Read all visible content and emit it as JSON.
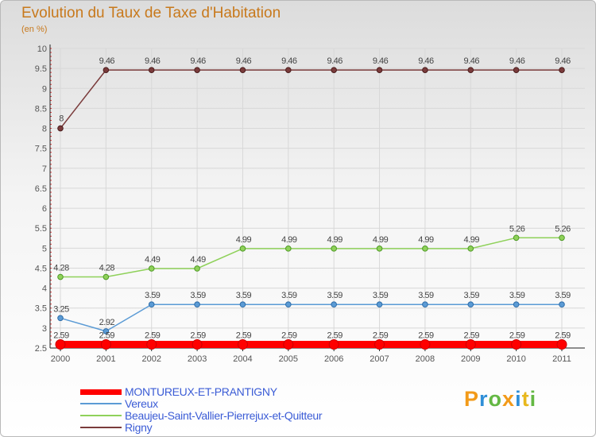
{
  "title": "Evolution du Taux de Taxe d'Habitation",
  "subtitle": "(en %)",
  "logo": {
    "text": "Proxiti"
  },
  "chart_data": {
    "type": "line",
    "x": [
      "2000",
      "2001",
      "2002",
      "2003",
      "2004",
      "2005",
      "2006",
      "2007",
      "2008",
      "2009",
      "2010",
      "2011"
    ],
    "ylim": [
      2.5,
      10
    ],
    "y_ticks": [
      "2.5",
      "3",
      "3.5",
      "4",
      "4.5",
      "5",
      "5.5",
      "6",
      "6.5",
      "7",
      "7.5",
      "8",
      "8.5",
      "9",
      "9.5",
      "10"
    ],
    "legend_position": "bottom-left",
    "series": [
      {
        "name": "MONTUREUX-ET-PRANTIGNY",
        "color": "#ff0000",
        "values": [
          2.59,
          2.59,
          2.59,
          2.59,
          2.59,
          2.59,
          2.59,
          2.59,
          2.59,
          2.59,
          2.59,
          2.59
        ],
        "labels": [
          "2.59",
          "2.59",
          "2.59",
          "2.59",
          "2.59",
          "2.59",
          "2.59",
          "2.59",
          "2.59",
          "2.59",
          "2.59",
          "2.59"
        ]
      },
      {
        "name": "Vereux",
        "color": "#5b9bd5",
        "values": [
          3.25,
          2.92,
          3.59,
          3.59,
          3.59,
          3.59,
          3.59,
          3.59,
          3.59,
          3.59,
          3.59,
          3.59
        ],
        "labels": [
          "3.25",
          "2.92",
          "3.59",
          "3.59",
          "3.59",
          "3.59",
          "3.59",
          "3.59",
          "3.59",
          "3.59",
          "3.59",
          "3.59"
        ]
      },
      {
        "name": "Beaujeu-Saint-Vallier-Pierrejux-et-Quitteur",
        "color": "#8fd15a",
        "values": [
          4.28,
          4.28,
          4.49,
          4.49,
          4.99,
          4.99,
          4.99,
          4.99,
          4.99,
          4.99,
          5.26,
          5.26
        ],
        "labels": [
          "4.28",
          "4.28",
          "4.49",
          "4.49",
          "4.99",
          "4.99",
          "4.99",
          "4.99",
          "4.99",
          "4.99",
          "5.26",
          "5.26"
        ]
      },
      {
        "name": "Rigny",
        "color": "#7a3b3b",
        "values": [
          8,
          9.46,
          9.46,
          9.46,
          9.46,
          9.46,
          9.46,
          9.46,
          9.46,
          9.46,
          9.46,
          9.46
        ],
        "labels": [
          "8",
          "9.46",
          "9.46",
          "9.46",
          "9.46",
          "9.46",
          "9.46",
          "9.46",
          "9.46",
          "9.46",
          "9.46",
          "9.46"
        ]
      }
    ]
  }
}
